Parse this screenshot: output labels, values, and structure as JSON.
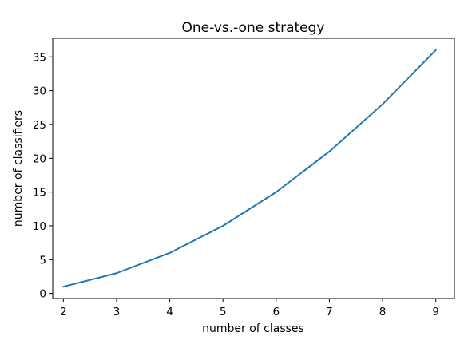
{
  "chart_data": {
    "type": "line",
    "title": "One-vs.-one strategy",
    "xlabel": "number of classes",
    "ylabel": "number of classifiers",
    "xlim": [
      1.8,
      9.35
    ],
    "ylim": [
      -0.75,
      37.75
    ],
    "xticks": [
      2,
      3,
      4,
      5,
      6,
      7,
      8,
      9
    ],
    "yticks": [
      0,
      5,
      10,
      15,
      20,
      25,
      30,
      35
    ],
    "grid": false,
    "series": [
      {
        "color": "#1f77b4",
        "x": [
          2,
          3,
          4,
          5,
          6,
          7,
          8,
          9
        ],
        "y": [
          1,
          3,
          6,
          10,
          15,
          21,
          28,
          36
        ]
      }
    ]
  }
}
